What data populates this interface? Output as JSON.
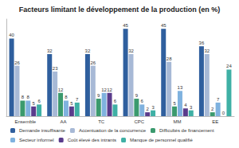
{
  "chart_data": {
    "type": "bar",
    "title": "Facteurs limitant le développement de la production (en %)",
    "categories": [
      "Ensemble",
      "AA",
      "TC",
      "CPC",
      "MM",
      "EE"
    ],
    "series": [
      {
        "name": "Demande insuffisante",
        "color": "#2f5f9e",
        "values": [
          40,
          32,
          32,
          45,
          45,
          36
        ]
      },
      {
        "name": "Accentuation de la concurrence",
        "color": "#a7b9d6",
        "values": [
          26,
          23,
          26,
          32,
          28,
          32
        ]
      },
      {
        "name": "Difficultés de financement",
        "color": "#3b9a6e",
        "values": [
          8,
          12,
          9,
          9,
          5,
          2
        ]
      },
      {
        "name": "Secteur informel",
        "color": "#7fb2df",
        "values": [
          8,
          8,
          12,
          6,
          13,
          7
        ]
      },
      {
        "name": "Coût élevé des intrants",
        "color": "#5a3c8c",
        "values": [
          5,
          5,
          12,
          2,
          4,
          0
        ]
      },
      {
        "name": "Manque de personnel qualifié",
        "color": "#3fb0a5",
        "values": [
          6,
          7,
          6,
          3,
          3,
          24
        ]
      }
    ],
    "ylim": [
      0,
      50
    ],
    "data_labels": true,
    "tick_labels": "x",
    "grid": false,
    "legend": "bottom"
  }
}
